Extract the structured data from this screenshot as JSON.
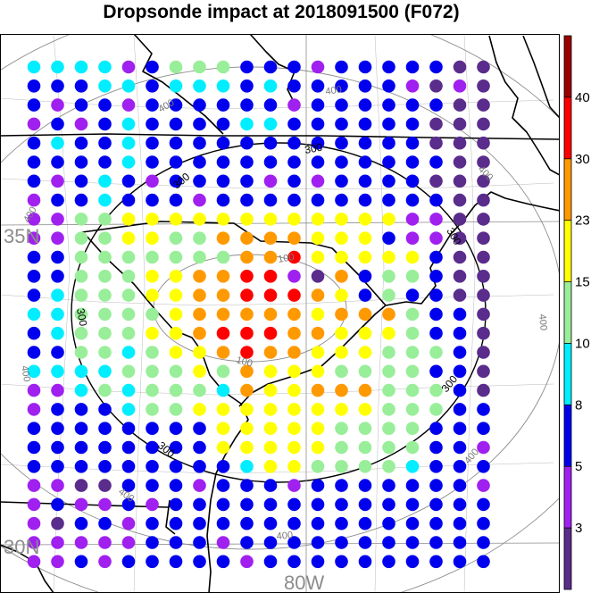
{
  "title": "Dropsonde impact at 2018091500 (F072)",
  "axes": {
    "lat_labels": [
      "35N",
      "30N"
    ],
    "lon_labels": [
      "80W"
    ]
  },
  "contours": {
    "black_label": "300",
    "gray_labels": [
      "100",
      "400"
    ]
  },
  "colorbar": {
    "colors": [
      "#5a2c8c",
      "#a020f0",
      "#0000ee",
      "#00eeff",
      "#99ee99",
      "#ffff00",
      "#ff9900",
      "#ff0000",
      "#990000"
    ],
    "labels": [
      "3",
      "5",
      "8",
      "10",
      "15",
      "23",
      "30",
      "40"
    ]
  },
  "chart_data": {
    "type": "heatmap",
    "title": "Dropsonde impact at 2018091500 (F072)",
    "legend_placement": "right",
    "color_bins": [
      {
        "range": "<3",
        "color": "#5a2c8c"
      },
      {
        "range": "3-5",
        "color": "#a020f0"
      },
      {
        "range": "5-8",
        "color": "#0000ee"
      },
      {
        "range": "8-10",
        "color": "#00eeff"
      },
      {
        "range": "10-15",
        "color": "#99ee99"
      },
      {
        "range": "15-23",
        "color": "#ffff00"
      },
      {
        "range": "23-30",
        "color": "#ff9900"
      },
      {
        "range": "30-40",
        "color": "#ff0000"
      },
      {
        "range": ">40",
        "color": "#990000"
      }
    ],
    "legend_key": "p=purple(<3) v=violet(3-5) b=blue(5-8) c=cyan(8-10) g=green(10-15) y=yellow(15-23) o=orange(23-30) r=red(30-40)",
    "rows": [
      "ccccvbgggbbbvbbbbbpp",
      "bbbccbcccbcbbbbbvpvp",
      "bvbbvbbbbbbvbbbbbbpp",
      "vbvbcbbbbccbbbbbbppp",
      "bcbbcbbbbbbbbbbbbppp",
      "bbbbcbbbbbbbbbbbbbpp",
      "bvbcbvbbbbvbvbbbbppp",
      "vbbcbbbvbbbbbbbbbbpp",
      "vvggyyyyyyyyyyyyvvpp",
      "vvggyyggooooyyybvvpp",
      "bbgggggggooryyyyybpp",
      "bbgggyyoorrvpobggbpp",
      "bcgggyyoorrroybgbbpp",
      "ccggggyoooooyooogbbp",
      "bcgggyyorrrooyyygbbp",
      "bbggcgyyorooyyygggbp",
      "ccccgggygoyyyggggbbp",
      "vvcgcgggcoyyooogggbp",
      "vbbbcggyyyyyyyygggbb",
      "bbbbbbbbyyyyyggggbbb",
      "bbbbbbbbyyyyyggggbbv",
      "bbbbbbbbbcyyggggcbbb",
      "vvppbbbvbbbvbbbbbbbv",
      "vbvvbvbbbbbbbbbbbbbb",
      "vpbbvbbbbbbbbbbbbbbb",
      "vvvvvbbbvbbbbbbbbbbb",
      "vvbvbbbbbvbbbbbbbbbb"
    ]
  }
}
